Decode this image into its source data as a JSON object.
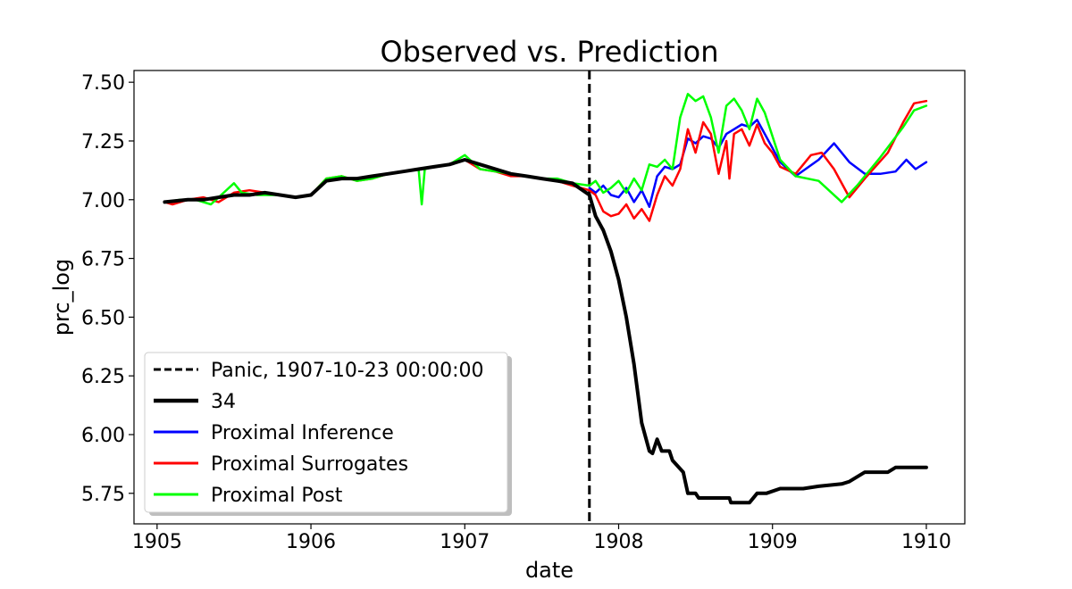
{
  "chart_data": {
    "type": "line",
    "title": "Observed vs. Prediction",
    "xlabel": "date",
    "ylabel": "prc_log",
    "xlim": [
      1904.85,
      1910.25
    ],
    "ylim": [
      5.62,
      7.55
    ],
    "x_ticks": [
      1905,
      1906,
      1907,
      1908,
      1909,
      1910
    ],
    "x_tick_labels": [
      "1905",
      "1906",
      "1907",
      "1908",
      "1909",
      "1910"
    ],
    "y_ticks": [
      5.75,
      6.0,
      6.25,
      6.5,
      6.75,
      7.0,
      7.25,
      7.5
    ],
    "y_tick_labels": [
      "5.75",
      "6.00",
      "6.25",
      "6.50",
      "6.75",
      "7.00",
      "7.25",
      "7.50"
    ],
    "grid": false,
    "legend_position": "lower-left",
    "event_line": {
      "label": "Panic, 1907-10-23 00:00:00",
      "x": 1907.81,
      "color": "#000000",
      "style": "dashed"
    },
    "series": [
      {
        "name": "34",
        "color": "#000000",
        "width": 4,
        "points": [
          [
            1905.05,
            6.99
          ],
          [
            1905.2,
            7.0
          ],
          [
            1905.3,
            7.0
          ],
          [
            1905.4,
            7.01
          ],
          [
            1905.5,
            7.02
          ],
          [
            1905.6,
            7.02
          ],
          [
            1905.7,
            7.03
          ],
          [
            1905.8,
            7.02
          ],
          [
            1905.9,
            7.01
          ],
          [
            1906.0,
            7.02
          ],
          [
            1906.1,
            7.08
          ],
          [
            1906.2,
            7.09
          ],
          [
            1906.3,
            7.09
          ],
          [
            1906.4,
            7.1
          ],
          [
            1906.5,
            7.11
          ],
          [
            1906.6,
            7.12
          ],
          [
            1906.7,
            7.13
          ],
          [
            1906.8,
            7.14
          ],
          [
            1906.9,
            7.15
          ],
          [
            1907.0,
            7.17
          ],
          [
            1907.1,
            7.15
          ],
          [
            1907.2,
            7.13
          ],
          [
            1907.3,
            7.11
          ],
          [
            1907.4,
            7.1
          ],
          [
            1907.5,
            7.09
          ],
          [
            1907.6,
            7.08
          ],
          [
            1907.7,
            7.07
          ],
          [
            1907.81,
            7.02
          ],
          [
            1907.85,
            6.93
          ],
          [
            1907.9,
            6.87
          ],
          [
            1907.95,
            6.78
          ],
          [
            1908.0,
            6.66
          ],
          [
            1908.05,
            6.5
          ],
          [
            1908.1,
            6.3
          ],
          [
            1908.15,
            6.05
          ],
          [
            1908.2,
            5.93
          ],
          [
            1908.22,
            5.92
          ],
          [
            1908.25,
            5.98
          ],
          [
            1908.28,
            5.93
          ],
          [
            1908.33,
            5.93
          ],
          [
            1908.35,
            5.89
          ],
          [
            1908.42,
            5.84
          ],
          [
            1908.45,
            5.75
          ],
          [
            1908.5,
            5.75
          ],
          [
            1908.52,
            5.73
          ],
          [
            1908.6,
            5.73
          ],
          [
            1908.72,
            5.73
          ],
          [
            1908.73,
            5.71
          ],
          [
            1908.85,
            5.71
          ],
          [
            1908.9,
            5.75
          ],
          [
            1908.96,
            5.75
          ],
          [
            1909.05,
            5.77
          ],
          [
            1909.2,
            5.77
          ],
          [
            1909.3,
            5.78
          ],
          [
            1909.45,
            5.79
          ],
          [
            1909.5,
            5.8
          ],
          [
            1909.6,
            5.84
          ],
          [
            1909.75,
            5.84
          ],
          [
            1909.8,
            5.86
          ],
          [
            1910.0,
            5.86
          ]
        ]
      },
      {
        "name": "Proximal Inference",
        "color": "#0000ff",
        "width": 2.5,
        "points": [
          [
            1907.81,
            7.05
          ],
          [
            1907.85,
            7.03
          ],
          [
            1907.9,
            7.06
          ],
          [
            1907.95,
            7.02
          ],
          [
            1908.0,
            7.01
          ],
          [
            1908.05,
            7.05
          ],
          [
            1908.1,
            6.99
          ],
          [
            1908.15,
            7.04
          ],
          [
            1908.2,
            6.97
          ],
          [
            1908.25,
            7.1
          ],
          [
            1908.3,
            7.14
          ],
          [
            1908.35,
            7.13
          ],
          [
            1908.4,
            7.15
          ],
          [
            1908.45,
            7.26
          ],
          [
            1908.5,
            7.24
          ],
          [
            1908.55,
            7.27
          ],
          [
            1908.6,
            7.26
          ],
          [
            1908.65,
            7.22
          ],
          [
            1908.7,
            7.28
          ],
          [
            1908.75,
            7.3
          ],
          [
            1908.8,
            7.32
          ],
          [
            1908.85,
            7.31
          ],
          [
            1908.9,
            7.34
          ],
          [
            1908.95,
            7.28
          ],
          [
            1909.0,
            7.22
          ],
          [
            1909.05,
            7.16
          ],
          [
            1909.15,
            7.1
          ],
          [
            1909.3,
            7.17
          ],
          [
            1909.4,
            7.24
          ],
          [
            1909.5,
            7.16
          ],
          [
            1909.6,
            7.11
          ],
          [
            1909.7,
            7.11
          ],
          [
            1909.8,
            7.12
          ],
          [
            1909.87,
            7.17
          ],
          [
            1909.93,
            7.13
          ],
          [
            1910.0,
            7.16
          ]
        ]
      },
      {
        "name": "Proximal Surrogates",
        "color": "#ff0000",
        "width": 2.5,
        "points": [
          [
            1905.05,
            6.99
          ],
          [
            1905.1,
            6.98
          ],
          [
            1905.2,
            7.0
          ],
          [
            1905.3,
            7.01
          ],
          [
            1905.4,
            6.99
          ],
          [
            1905.5,
            7.03
          ],
          [
            1905.6,
            7.04
          ],
          [
            1905.7,
            7.03
          ],
          [
            1905.8,
            7.02
          ],
          [
            1905.9,
            7.01
          ],
          [
            1906.0,
            7.02
          ],
          [
            1906.1,
            7.09
          ],
          [
            1906.2,
            7.1
          ],
          [
            1906.3,
            7.08
          ],
          [
            1906.4,
            7.09
          ],
          [
            1906.5,
            7.11
          ],
          [
            1906.6,
            7.12
          ],
          [
            1906.7,
            7.13
          ],
          [
            1906.8,
            7.14
          ],
          [
            1906.9,
            7.15
          ],
          [
            1907.0,
            7.17
          ],
          [
            1907.1,
            7.13
          ],
          [
            1907.2,
            7.12
          ],
          [
            1907.3,
            7.1
          ],
          [
            1907.4,
            7.1
          ],
          [
            1907.5,
            7.09
          ],
          [
            1907.6,
            7.08
          ],
          [
            1907.7,
            7.06
          ],
          [
            1907.81,
            7.04
          ],
          [
            1907.85,
            7.02
          ],
          [
            1907.9,
            6.95
          ],
          [
            1907.95,
            6.93
          ],
          [
            1908.0,
            6.94
          ],
          [
            1908.05,
            6.98
          ],
          [
            1908.1,
            6.92
          ],
          [
            1908.15,
            6.96
          ],
          [
            1908.2,
            6.91
          ],
          [
            1908.25,
            7.02
          ],
          [
            1908.3,
            7.1
          ],
          [
            1908.35,
            7.06
          ],
          [
            1908.4,
            7.13
          ],
          [
            1908.45,
            7.3
          ],
          [
            1908.5,
            7.2
          ],
          [
            1908.55,
            7.33
          ],
          [
            1908.6,
            7.28
          ],
          [
            1908.65,
            7.11
          ],
          [
            1908.7,
            7.25
          ],
          [
            1908.72,
            7.09
          ],
          [
            1908.75,
            7.28
          ],
          [
            1908.8,
            7.3
          ],
          [
            1908.85,
            7.23
          ],
          [
            1908.9,
            7.32
          ],
          [
            1908.95,
            7.24
          ],
          [
            1909.0,
            7.2
          ],
          [
            1909.05,
            7.14
          ],
          [
            1909.15,
            7.11
          ],
          [
            1909.25,
            7.19
          ],
          [
            1909.32,
            7.2
          ],
          [
            1909.4,
            7.13
          ],
          [
            1909.5,
            7.01
          ],
          [
            1909.6,
            7.09
          ],
          [
            1909.75,
            7.2
          ],
          [
            1909.85,
            7.33
          ],
          [
            1909.92,
            7.41
          ],
          [
            1910.0,
            7.42
          ]
        ]
      },
      {
        "name": "Proximal Post",
        "color": "#00ff00",
        "width": 2.5,
        "points": [
          [
            1905.05,
            6.99
          ],
          [
            1905.15,
            7.0
          ],
          [
            1905.25,
            7.0
          ],
          [
            1905.35,
            6.98
          ],
          [
            1905.5,
            7.07
          ],
          [
            1905.55,
            7.03
          ],
          [
            1905.65,
            7.02
          ],
          [
            1905.8,
            7.02
          ],
          [
            1905.9,
            7.01
          ],
          [
            1906.0,
            7.02
          ],
          [
            1906.1,
            7.09
          ],
          [
            1906.2,
            7.1
          ],
          [
            1906.3,
            7.08
          ],
          [
            1906.4,
            7.09
          ],
          [
            1906.5,
            7.11
          ],
          [
            1906.6,
            7.12
          ],
          [
            1906.7,
            7.13
          ],
          [
            1906.72,
            6.98
          ],
          [
            1906.74,
            7.13
          ],
          [
            1906.8,
            7.14
          ],
          [
            1906.9,
            7.15
          ],
          [
            1907.0,
            7.19
          ],
          [
            1907.1,
            7.13
          ],
          [
            1907.2,
            7.12
          ],
          [
            1907.3,
            7.11
          ],
          [
            1907.4,
            7.1
          ],
          [
            1907.5,
            7.09
          ],
          [
            1907.6,
            7.09
          ],
          [
            1907.7,
            7.07
          ],
          [
            1907.81,
            7.06
          ],
          [
            1907.85,
            7.08
          ],
          [
            1907.9,
            7.03
          ],
          [
            1907.95,
            7.05
          ],
          [
            1908.0,
            7.08
          ],
          [
            1908.05,
            7.03
          ],
          [
            1908.1,
            7.09
          ],
          [
            1908.15,
            7.04
          ],
          [
            1908.2,
            7.15
          ],
          [
            1908.25,
            7.14
          ],
          [
            1908.3,
            7.17
          ],
          [
            1908.35,
            7.13
          ],
          [
            1908.4,
            7.35
          ],
          [
            1908.45,
            7.45
          ],
          [
            1908.5,
            7.42
          ],
          [
            1908.55,
            7.44
          ],
          [
            1908.6,
            7.35
          ],
          [
            1908.65,
            7.2
          ],
          [
            1908.7,
            7.4
          ],
          [
            1908.75,
            7.43
          ],
          [
            1908.8,
            7.38
          ],
          [
            1908.85,
            7.3
          ],
          [
            1908.9,
            7.43
          ],
          [
            1908.95,
            7.37
          ],
          [
            1909.0,
            7.27
          ],
          [
            1909.05,
            7.17
          ],
          [
            1909.15,
            7.1
          ],
          [
            1909.3,
            7.08
          ],
          [
            1909.45,
            6.99
          ],
          [
            1909.55,
            7.06
          ],
          [
            1909.7,
            7.18
          ],
          [
            1909.85,
            7.31
          ],
          [
            1909.92,
            7.38
          ],
          [
            1910.0,
            7.4
          ]
        ]
      }
    ]
  }
}
